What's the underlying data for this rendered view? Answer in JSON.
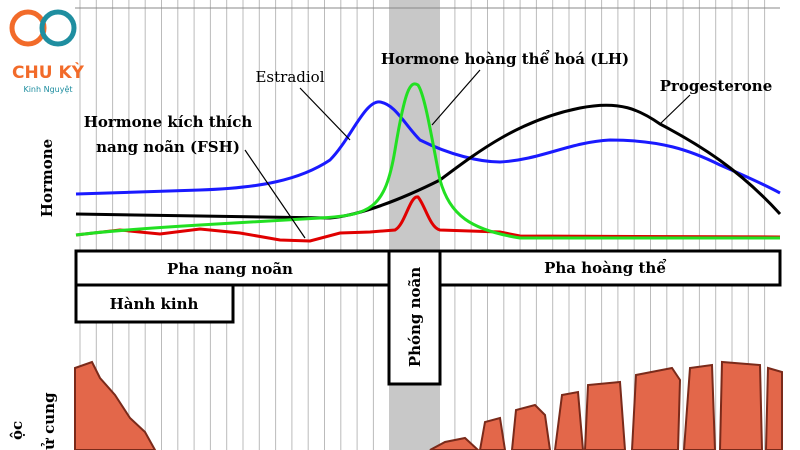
{
  "logo": {
    "title": "CHU KỲ",
    "subtitle": "Kinh Nguyệt"
  },
  "labels": {
    "estradiol": "Estradiol",
    "lh": "Hormone hoàng thể hoá (LH)",
    "progesterone": "Progesterone",
    "fsh_line1": "Hormone kích thích",
    "fsh_line2": "nang noãn (FSH)",
    "y_axis": "Hormone"
  },
  "phases": {
    "follicular": "Pha nang noãn",
    "luteal": "Pha hoàng thể",
    "ovulation": "Phóng noãn",
    "menstruation": "Hành kinh"
  },
  "bottom_axis": {
    "line1": "ộc",
    "line2": "ử cung"
  }
}
